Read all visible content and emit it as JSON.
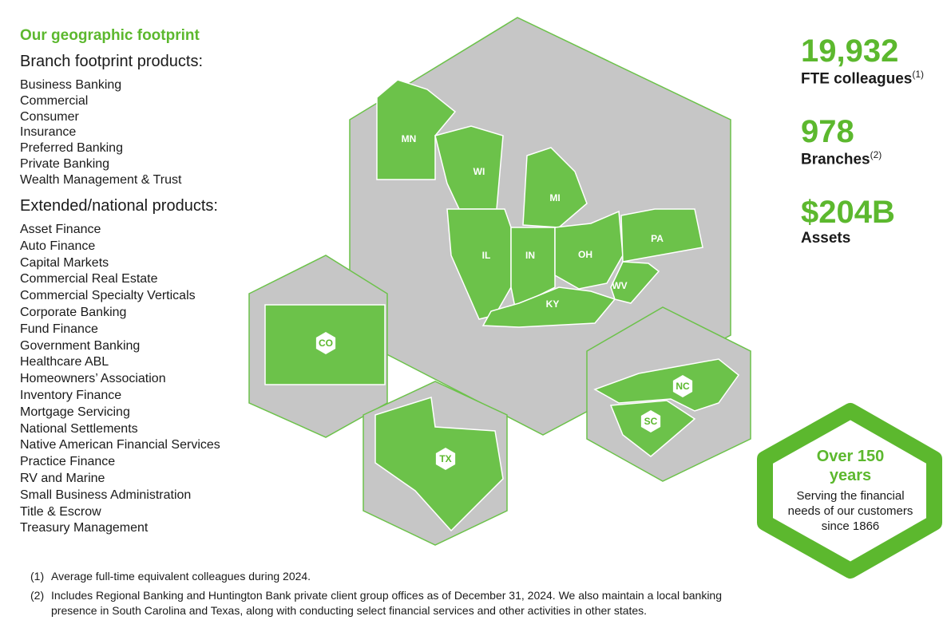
{
  "title": "Our geographic footprint",
  "branch": {
    "heading": "Branch footprint products:",
    "items": [
      "Business Banking",
      "Commercial",
      "Consumer",
      "Insurance",
      "Preferred Banking",
      "Private Banking",
      "Wealth Management & Trust"
    ]
  },
  "extended": {
    "heading": "Extended/national products:",
    "items": [
      "Asset Finance",
      "Auto Finance",
      "Capital Markets",
      "Commercial Real Estate",
      "Commercial Specialty Verticals",
      "Corporate Banking",
      "Fund Finance",
      "Government Banking",
      "Healthcare ABL",
      "Homeowners’ Association",
      "Inventory Finance",
      "Mortgage Servicing",
      "National Settlements",
      "Native American Financial Services",
      "Practice Finance",
      "RV and Marine",
      "Small Business Administration",
      "Title & Escrow",
      "Treasury Management"
    ]
  },
  "map": {
    "states": [
      "MN",
      "WI",
      "MI",
      "IL",
      "IN",
      "OH",
      "PA",
      "KY",
      "WV",
      "CO",
      "TX",
      "NC",
      "SC"
    ]
  },
  "stats": [
    {
      "value": "19,932",
      "label": "FTE colleagues",
      "note": "(1)"
    },
    {
      "value": "978",
      "label": "Branches",
      "note": "(2)"
    },
    {
      "value": "$204B",
      "label": "Assets"
    }
  ],
  "badge": {
    "heading": "Over 150 years",
    "text": "Serving the financial needs of our customers since 1866"
  },
  "footnotes": [
    {
      "marker": "(1)",
      "text": "Average full-time equivalent colleagues during 2024."
    },
    {
      "marker": "(2)",
      "text": "Includes Regional Banking and Huntington Bank private client group offices as of December 31, 2024. We also maintain a local banking presence in South Carolina and Texas, along with conducting select financial services and other activities in other states."
    }
  ]
}
